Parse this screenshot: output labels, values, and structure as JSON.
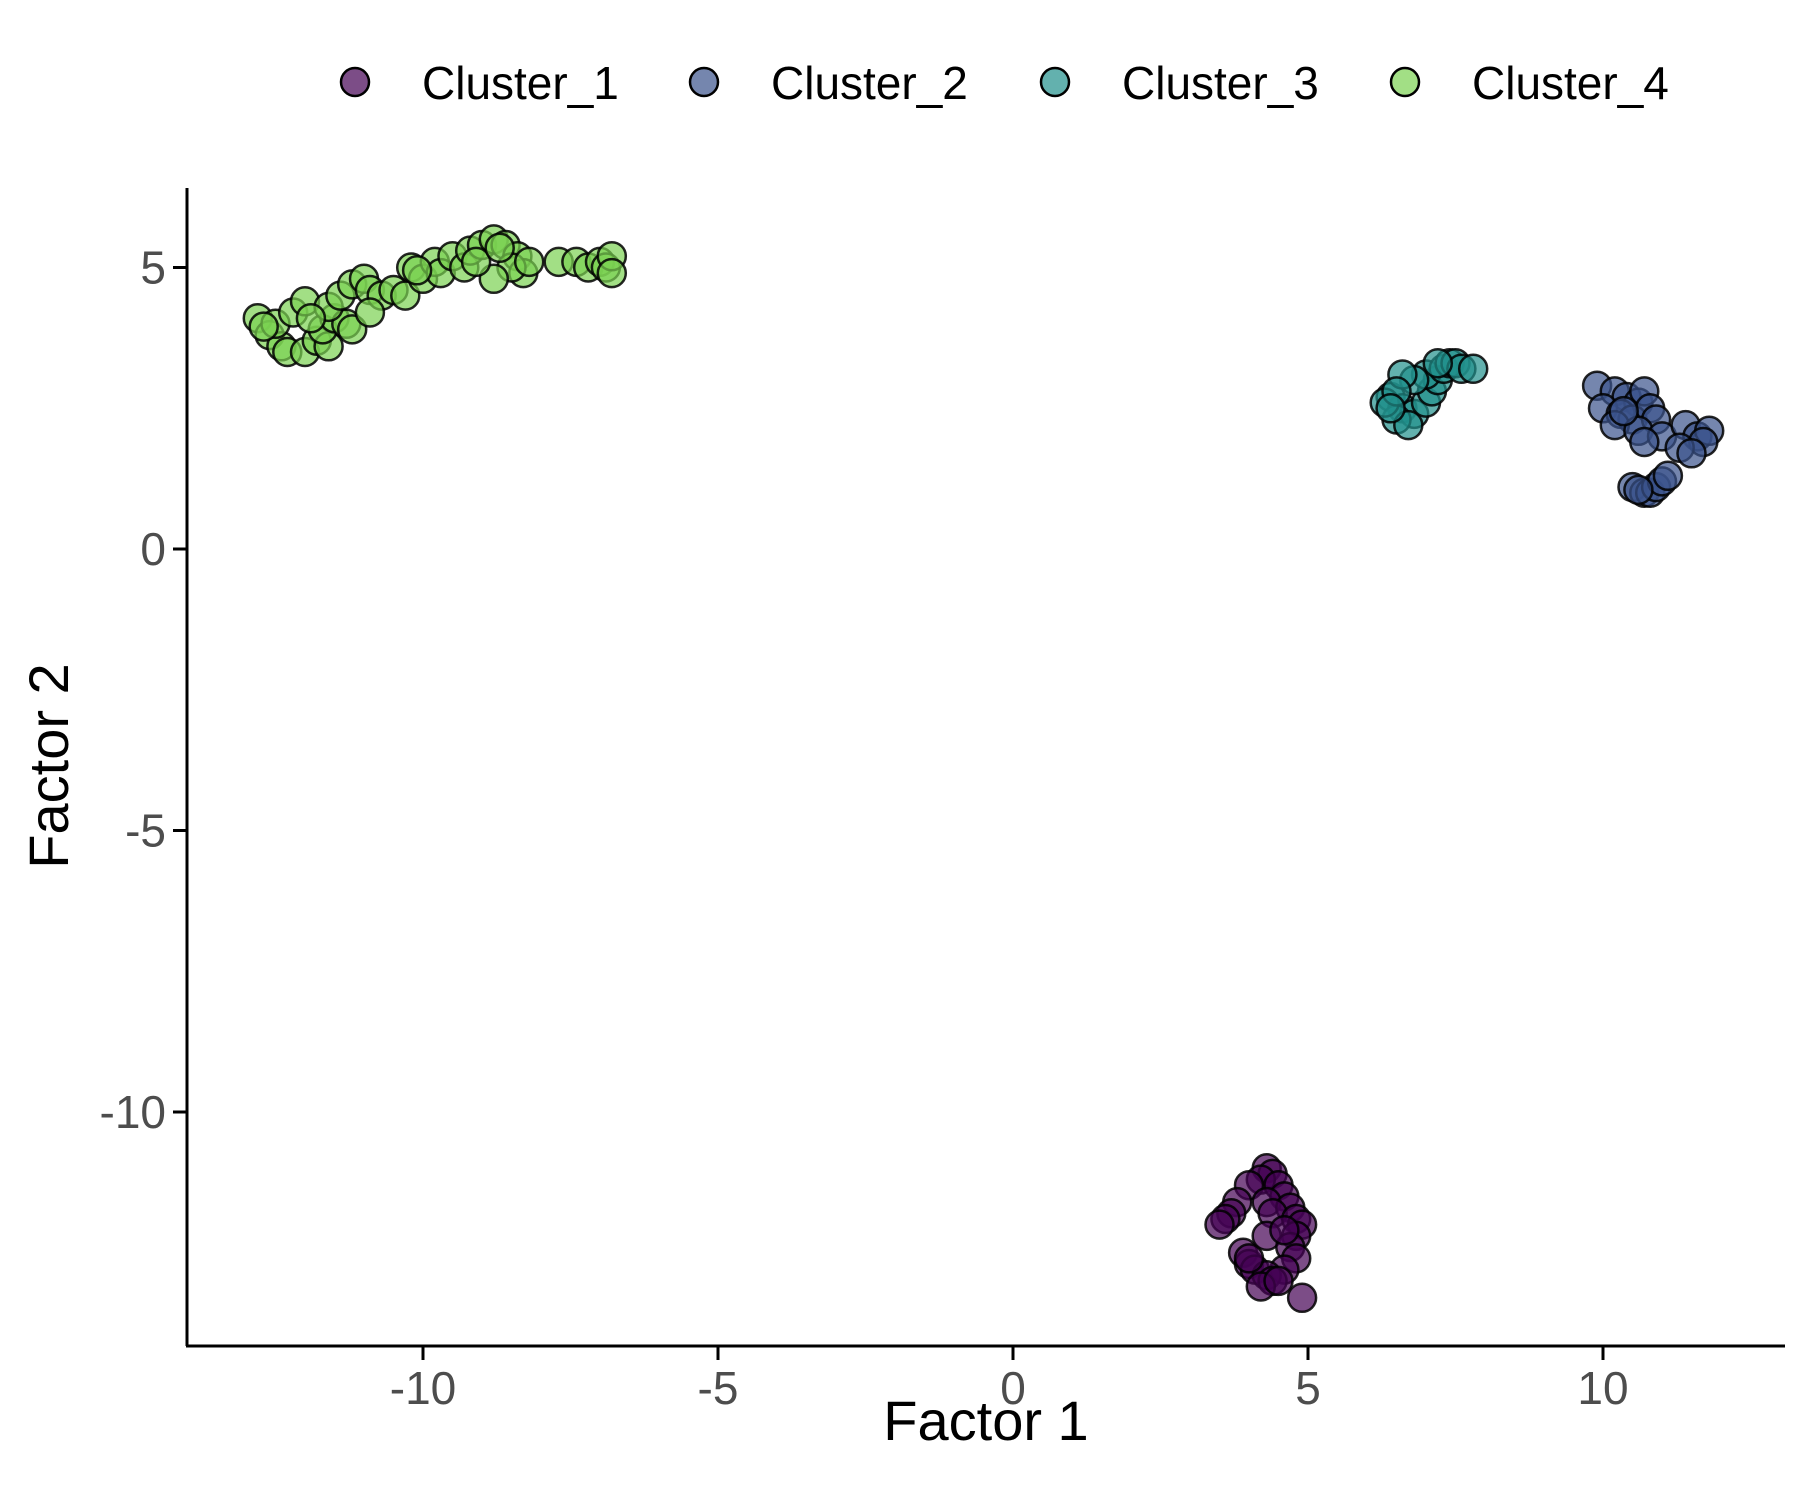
{
  "chart_data": {
    "type": "scatter",
    "xlabel": "Factor 1",
    "ylabel": "Factor 2",
    "xlim": [
      -14,
      13
    ],
    "ylim": [
      -14.5,
      6.5
    ],
    "x_ticks": [
      -10,
      -5,
      0,
      5,
      10
    ],
    "y_ticks": [
      5,
      0,
      -5,
      -10
    ],
    "grid": false,
    "legend_position": "top",
    "point_opacity": 0.7,
    "point_stroke": "#000000",
    "series": [
      {
        "name": "Cluster_1",
        "color": "#440154",
        "points": [
          [
            4.3,
            -11.0
          ],
          [
            4.4,
            -11.1
          ],
          [
            4.2,
            -11.2
          ],
          [
            4.5,
            -11.3
          ],
          [
            4.0,
            -11.3
          ],
          [
            4.6,
            -11.5
          ],
          [
            3.8,
            -11.6
          ],
          [
            4.3,
            -11.6
          ],
          [
            4.7,
            -11.7
          ],
          [
            3.7,
            -11.8
          ],
          [
            4.4,
            -11.8
          ],
          [
            3.6,
            -11.9
          ],
          [
            4.8,
            -11.9
          ],
          [
            4.9,
            -12.0
          ],
          [
            3.5,
            -12.0
          ],
          [
            4.8,
            -12.2
          ],
          [
            4.3,
            -12.2
          ],
          [
            4.7,
            -12.4
          ],
          [
            3.9,
            -12.5
          ],
          [
            4.0,
            -12.7
          ],
          [
            4.8,
            -12.6
          ],
          [
            4.1,
            -12.8
          ],
          [
            4.6,
            -12.8
          ],
          [
            4.3,
            -12.9
          ],
          [
            4.4,
            -13.0
          ],
          [
            4.2,
            -13.1
          ],
          [
            4.9,
            -13.3
          ],
          [
            4.5,
            -13.0
          ],
          [
            4.0,
            -12.6
          ],
          [
            4.6,
            -12.1
          ]
        ]
      },
      {
        "name": "Cluster_2",
        "color": "#3b528b",
        "points": [
          [
            9.9,
            2.9
          ],
          [
            10.2,
            2.8
          ],
          [
            10.4,
            2.7
          ],
          [
            10.6,
            2.6
          ],
          [
            10.7,
            2.8
          ],
          [
            10.0,
            2.5
          ],
          [
            10.3,
            2.4
          ],
          [
            10.5,
            2.3
          ],
          [
            10.8,
            2.5
          ],
          [
            10.9,
            2.3
          ],
          [
            10.2,
            2.2
          ],
          [
            10.6,
            2.1
          ],
          [
            11.0,
            2.0
          ],
          [
            11.4,
            2.2
          ],
          [
            11.6,
            2.0
          ],
          [
            11.8,
            2.1
          ],
          [
            11.7,
            1.9
          ],
          [
            11.3,
            1.8
          ],
          [
            11.5,
            1.7
          ],
          [
            10.7,
            1.9
          ],
          [
            10.5,
            1.1
          ],
          [
            10.7,
            1.0
          ],
          [
            10.8,
            1.0
          ],
          [
            10.9,
            1.1
          ],
          [
            11.0,
            1.2
          ],
          [
            11.1,
            1.3
          ],
          [
            10.6,
            1.05
          ],
          [
            10.35,
            2.45
          ]
        ]
      },
      {
        "name": "Cluster_3",
        "color": "#21908c",
        "points": [
          [
            6.4,
            2.7
          ],
          [
            6.6,
            2.5
          ],
          [
            6.8,
            2.4
          ],
          [
            6.5,
            2.3
          ],
          [
            6.7,
            2.2
          ],
          [
            6.3,
            2.6
          ],
          [
            7.0,
            2.6
          ],
          [
            7.1,
            2.8
          ],
          [
            7.2,
            3.0
          ],
          [
            7.0,
            3.1
          ],
          [
            6.8,
            3.0
          ],
          [
            6.6,
            3.1
          ],
          [
            7.3,
            3.2
          ],
          [
            7.4,
            3.3
          ],
          [
            7.5,
            3.3
          ],
          [
            7.6,
            3.2
          ],
          [
            7.8,
            3.2
          ],
          [
            6.5,
            2.8
          ],
          [
            6.4,
            2.5
          ],
          [
            7.2,
            3.3
          ]
        ]
      },
      {
        "name": "Cluster_4",
        "color": "#7ad151",
        "points": [
          [
            -12.8,
            4.1
          ],
          [
            -12.6,
            3.8
          ],
          [
            -12.4,
            3.6
          ],
          [
            -12.5,
            4.0
          ],
          [
            -12.2,
            4.2
          ],
          [
            -12.0,
            4.4
          ],
          [
            -12.3,
            3.5
          ],
          [
            -12.0,
            3.5
          ],
          [
            -11.8,
            3.7
          ],
          [
            -11.6,
            3.6
          ],
          [
            -11.7,
            3.9
          ],
          [
            -11.5,
            4.1
          ],
          [
            -11.3,
            4.0
          ],
          [
            -11.2,
            3.9
          ],
          [
            -11.6,
            4.3
          ],
          [
            -11.4,
            4.5
          ],
          [
            -11.2,
            4.7
          ],
          [
            -11.0,
            4.8
          ],
          [
            -10.9,
            4.6
          ],
          [
            -10.7,
            4.5
          ],
          [
            -10.5,
            4.6
          ],
          [
            -10.3,
            4.5
          ],
          [
            -10.9,
            4.2
          ],
          [
            -10.2,
            5.0
          ],
          [
            -10.0,
            4.8
          ],
          [
            -9.8,
            5.1
          ],
          [
            -9.7,
            4.9
          ],
          [
            -9.5,
            5.2
          ],
          [
            -9.3,
            5.0
          ],
          [
            -9.2,
            5.3
          ],
          [
            -9.0,
            5.4
          ],
          [
            -8.8,
            5.5
          ],
          [
            -8.6,
            5.4
          ],
          [
            -8.4,
            5.2
          ],
          [
            -8.3,
            4.9
          ],
          [
            -8.5,
            5.0
          ],
          [
            -8.8,
            4.8
          ],
          [
            -9.1,
            5.1
          ],
          [
            -8.2,
            5.1
          ],
          [
            -7.7,
            5.1
          ],
          [
            -7.4,
            5.1
          ],
          [
            -7.2,
            5.0
          ],
          [
            -7.0,
            5.1
          ],
          [
            -6.9,
            5.0
          ],
          [
            -6.8,
            5.2
          ],
          [
            -6.8,
            4.9
          ],
          [
            -12.7,
            3.95
          ],
          [
            -11.9,
            4.1
          ],
          [
            -10.1,
            4.95
          ],
          [
            -8.7,
            5.35
          ]
        ]
      }
    ]
  }
}
